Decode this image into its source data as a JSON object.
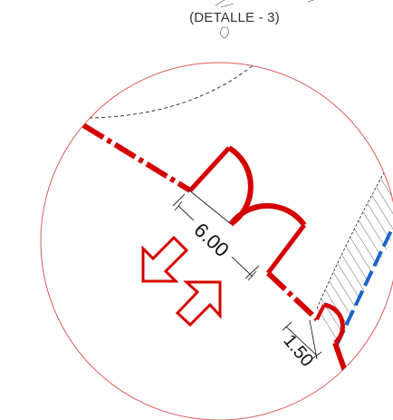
{
  "detail_title": "(DETALLE - 3)",
  "dimensions": {
    "main": "6.00",
    "side": "1.50"
  },
  "colors": {
    "circle_outline": "#e05a5a",
    "wall_red": "#d40000",
    "dashed_blue": "#1b64c8",
    "hatch": "#666666",
    "dimension_line": "#222222",
    "background": "#ffffff"
  }
}
